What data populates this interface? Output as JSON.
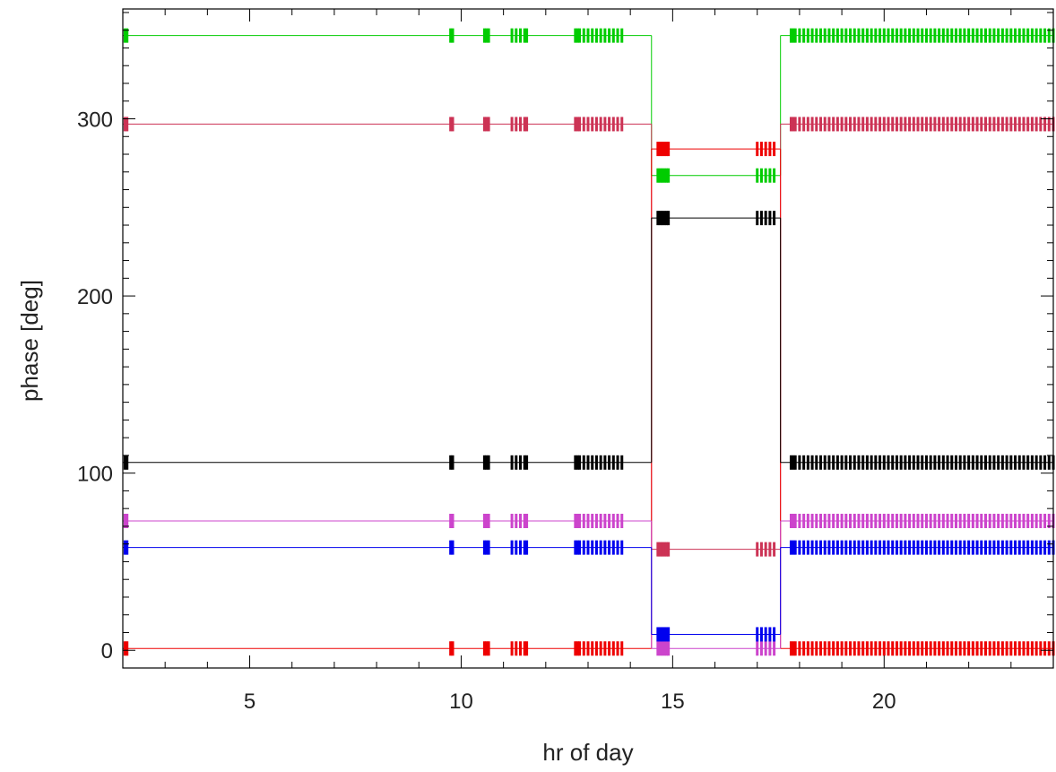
{
  "chart_data": {
    "type": "line",
    "title": "",
    "xlabel": "hr of day",
    "ylabel": "phase [deg]",
    "xlim": [
      2.0,
      24.0
    ],
    "ylim": [
      -10,
      362
    ],
    "x_ticks": [
      5,
      10,
      15,
      20
    ],
    "x_tick_labels": [
      "5",
      "10",
      "15",
      "20"
    ],
    "y_ticks": [
      0,
      100,
      200,
      300
    ],
    "y_tick_labels": [
      "0",
      "100",
      "200",
      "300"
    ],
    "x_minor_step": 1,
    "y_minor_step": 10,
    "grid": false,
    "legend": "none",
    "sample_times": [
      2.05,
      2.1,
      9.75,
      9.8,
      10.55,
      10.6,
      10.65,
      11.2,
      11.3,
      11.4,
      11.5,
      11.55,
      12.7,
      12.75,
      12.8,
      12.9,
      13.0,
      13.1,
      13.2,
      13.3,
      13.4,
      13.5,
      13.6,
      13.7,
      13.8,
      14.65,
      14.7,
      14.75,
      14.8,
      14.85,
      14.9,
      17.0,
      17.1,
      17.2,
      17.3,
      17.4,
      17.8,
      17.85,
      17.9,
      18.0,
      18.1,
      18.2,
      18.3,
      18.4,
      18.5,
      18.6,
      18.7,
      18.8,
      18.9,
      19.0,
      19.1,
      19.2,
      19.3,
      19.4,
      19.5,
      19.6,
      19.7,
      19.8,
      19.9,
      20.0,
      20.1,
      20.2,
      20.3,
      20.4,
      20.5,
      20.6,
      20.7,
      20.8,
      20.9,
      21.0,
      21.1,
      21.2,
      21.3,
      21.4,
      21.5,
      21.6,
      21.7,
      21.8,
      21.9,
      22.0,
      22.1,
      22.2,
      22.3,
      22.4,
      22.5,
      22.6,
      22.7,
      22.8,
      22.9,
      23.0,
      23.1,
      23.2,
      23.3,
      23.4,
      23.5,
      23.6,
      23.7,
      23.8,
      23.9,
      24.0
    ],
    "series": [
      {
        "color": "#00cc00",
        "segments": [
          {
            "x": [
              2.0,
              14.5
            ],
            "y": 347
          },
          {
            "x": [
              14.5,
              17.55
            ],
            "y": 268
          },
          {
            "x": [
              17.55,
              24.0
            ],
            "y": 347
          }
        ]
      },
      {
        "color": "#cc3355",
        "segments": [
          {
            "x": [
              2.0,
              14.5
            ],
            "y": 297
          },
          {
            "x": [
              14.5,
              17.55
            ],
            "y": 57
          },
          {
            "x": [
              17.55,
              24.0
            ],
            "y": 297
          }
        ]
      },
      {
        "color": "#ee0000",
        "segments": [
          {
            "x": [
              2.0,
              14.5
            ],
            "y": 1
          },
          {
            "x": [
              14.5,
              17.55
            ],
            "y": 283
          },
          {
            "x": [
              17.55,
              24.0
            ],
            "y": 1
          }
        ]
      },
      {
        "color": "#000000",
        "segments": [
          {
            "x": [
              2.0,
              14.5
            ],
            "y": 106
          },
          {
            "x": [
              14.5,
              17.55
            ],
            "y": 244
          },
          {
            "x": [
              17.55,
              24.0
            ],
            "y": 106
          }
        ]
      },
      {
        "color": "#cc44cc",
        "segments": [
          {
            "x": [
              2.0,
              14.5
            ],
            "y": 73
          },
          {
            "x": [
              14.5,
              17.55
            ],
            "y": 1
          },
          {
            "x": [
              17.55,
              24.0
            ],
            "y": 73
          }
        ]
      },
      {
        "color": "#0000ee",
        "segments": [
          {
            "x": [
              2.0,
              14.5
            ],
            "y": 58
          },
          {
            "x": [
              14.5,
              17.55
            ],
            "y": 9
          },
          {
            "x": [
              17.55,
              24.0
            ],
            "y": 58
          }
        ]
      }
    ]
  }
}
